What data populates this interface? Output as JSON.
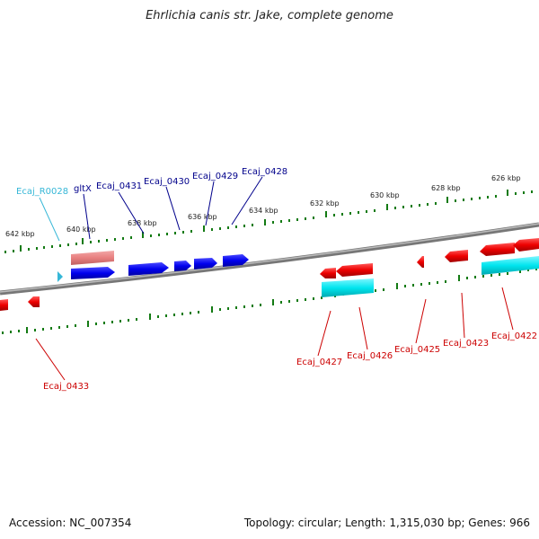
{
  "title": "Ehrlichia canis str. Jake, complete genome",
  "footer": {
    "accession": "Accession: NC_007354",
    "summary": "Topology: circular; Length: 1,315,030 bp; Genes: 966"
  },
  "colors": {
    "forward_gene": "#0000ee",
    "reverse_gene": "#ee0000",
    "forward_label": "#00008b",
    "reverse_label": "#cc0000",
    "rna_gene": "#e88080",
    "rna_label": "#36b7d7",
    "cyan_feature": "#00e5ee",
    "tick": "#137a13",
    "backbone": "#888888"
  },
  "scale_labels": [
    "642 kbp",
    "640 kbp",
    "638 kbp",
    "636 kbp",
    "634 kbp",
    "632 kbp",
    "630 kbp",
    "628 kbp",
    "626 kbp"
  ],
  "gene_labels": {
    "top": [
      "Ecaj_R0028",
      "gltX",
      "Ecaj_0431",
      "Ecaj_0430",
      "Ecaj_0429",
      "Ecaj_0428"
    ],
    "bottom": [
      "Ecaj_0433",
      "Ecaj_0427",
      "Ecaj_0426",
      "Ecaj_0425",
      "Ecaj_0423",
      "Ecaj_0422"
    ]
  }
}
